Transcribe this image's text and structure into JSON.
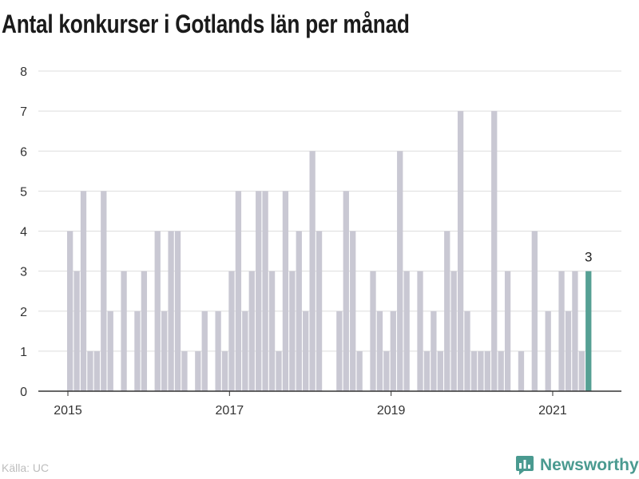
{
  "title": "Antal konkurser i Gotlands län per månad",
  "source": "Källa: UC",
  "brand": {
    "name": "Newsworthy",
    "icon": "newsworthy-logo-icon"
  },
  "colors": {
    "bar": "#c9c8d3",
    "highlight": "#56a094",
    "grid": "#dddddd",
    "axis": "#333333",
    "brand": "#4a9a90"
  },
  "chart_data": {
    "type": "bar",
    "title": "Antal konkurser i Gotlands län per månad",
    "xlabel": "",
    "ylabel": "",
    "ylim": [
      0,
      8
    ],
    "yticks": [
      0,
      1,
      2,
      3,
      4,
      5,
      6,
      7,
      8
    ],
    "xticks": [
      "2015",
      "2017",
      "2019",
      "2021"
    ],
    "start": "2015-01",
    "categories": [
      "2015-01",
      "2015-02",
      "2015-03",
      "2015-04",
      "2015-05",
      "2015-06",
      "2015-07",
      "2015-08",
      "2015-09",
      "2015-10",
      "2015-11",
      "2015-12",
      "2016-01",
      "2016-02",
      "2016-03",
      "2016-04",
      "2016-05",
      "2016-06",
      "2016-07",
      "2016-08",
      "2016-09",
      "2016-10",
      "2016-11",
      "2016-12",
      "2017-01",
      "2017-02",
      "2017-03",
      "2017-04",
      "2017-05",
      "2017-06",
      "2017-07",
      "2017-08",
      "2017-09",
      "2017-10",
      "2017-11",
      "2017-12",
      "2018-01",
      "2018-02",
      "2018-03",
      "2018-04",
      "2018-05",
      "2018-06",
      "2018-07",
      "2018-08",
      "2018-09",
      "2018-10",
      "2018-11",
      "2018-12",
      "2019-01",
      "2019-02",
      "2019-03",
      "2019-04",
      "2019-05",
      "2019-06",
      "2019-07",
      "2019-08",
      "2019-09",
      "2019-10",
      "2019-11",
      "2019-12",
      "2020-01",
      "2020-02",
      "2020-03",
      "2020-04",
      "2020-05",
      "2020-06",
      "2020-07",
      "2020-08",
      "2020-09",
      "2020-10",
      "2020-11",
      "2020-12",
      "2021-01",
      "2021-02",
      "2021-03",
      "2021-04",
      "2021-05",
      "2021-06"
    ],
    "values": [
      4,
      3,
      5,
      1,
      1,
      5,
      2,
      0,
      3,
      0,
      2,
      3,
      0,
      4,
      2,
      4,
      4,
      1,
      0,
      1,
      2,
      0,
      2,
      1,
      3,
      5,
      2,
      3,
      5,
      5,
      3,
      1,
      5,
      3,
      4,
      2,
      6,
      4,
      0,
      0,
      2,
      5,
      4,
      1,
      0,
      3,
      2,
      1,
      2,
      6,
      3,
      0,
      3,
      1,
      2,
      1,
      4,
      3,
      7,
      2,
      1,
      1,
      1,
      7,
      1,
      3,
      0,
      1,
      0,
      4,
      0,
      2,
      0,
      3,
      2,
      3,
      1,
      3
    ],
    "highlight": {
      "category": "2021-06",
      "value": 3,
      "label": "3"
    },
    "grid": true,
    "legend": "none"
  }
}
